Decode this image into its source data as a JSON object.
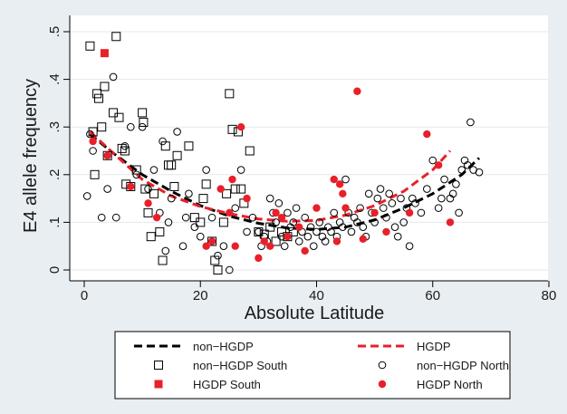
{
  "chart_data": {
    "type": "scatter",
    "xlabel": "Absolute Latitude",
    "ylabel": "E4 allele frequency",
    "xlim": [
      0,
      80
    ],
    "ylim": [
      0,
      0.5
    ],
    "x_ticks": [
      {
        "value": 0,
        "label": "0"
      },
      {
        "value": 20,
        "label": "20"
      },
      {
        "value": 40,
        "label": "40"
      },
      {
        "value": 60,
        "label": "60"
      },
      {
        "value": 80,
        "label": "80"
      }
    ],
    "y_ticks": [
      {
        "value": 0,
        "label": "0"
      },
      {
        "value": 0.1,
        "label": ".1"
      },
      {
        "value": 0.2,
        "label": ".2"
      },
      {
        "value": 0.3,
        "label": ".3"
      },
      {
        "value": 0.4,
        "label": ".4"
      },
      {
        "value": 0.5,
        "label": ".5"
      }
    ],
    "grid": "horizontal",
    "legend_position": "bottom",
    "colors": {
      "non_hgdp": "#000000",
      "hgdp": "#e8202a"
    },
    "series": [
      {
        "name": "non−HGDP",
        "kind": "line",
        "style": "dashed",
        "color": "#000000",
        "points": [
          [
            1,
            0.285
          ],
          [
            5,
            0.245
          ],
          [
            10,
            0.2
          ],
          [
            15,
            0.165
          ],
          [
            20,
            0.135
          ],
          [
            25,
            0.113
          ],
          [
            30,
            0.098
          ],
          [
            35,
            0.088
          ],
          [
            40,
            0.085
          ],
          [
            45,
            0.09
          ],
          [
            50,
            0.105
          ],
          [
            55,
            0.13
          ],
          [
            60,
            0.16
          ],
          [
            65,
            0.2
          ],
          [
            68,
            0.235
          ]
        ]
      },
      {
        "name": "HGDP",
        "kind": "line",
        "style": "dashed",
        "color": "#e8202a",
        "points": [
          [
            1,
            0.29
          ],
          [
            5,
            0.245
          ],
          [
            10,
            0.19
          ],
          [
            15,
            0.155
          ],
          [
            20,
            0.133
          ],
          [
            25,
            0.118
          ],
          [
            30,
            0.107
          ],
          [
            35,
            0.102
          ],
          [
            40,
            0.104
          ],
          [
            45,
            0.115
          ],
          [
            50,
            0.135
          ],
          [
            55,
            0.165
          ],
          [
            60,
            0.21
          ],
          [
            63,
            0.25
          ]
        ]
      },
      {
        "name": "non−HGDP South",
        "kind": "scatter",
        "marker": "square-open",
        "color": "#000000",
        "points": [
          [
            1,
            0.47
          ],
          [
            1.5,
            0.29
          ],
          [
            1.8,
            0.2
          ],
          [
            2.2,
            0.37
          ],
          [
            2.5,
            0.36
          ],
          [
            3,
            0.3
          ],
          [
            3.5,
            0.385
          ],
          [
            4,
            0.24
          ],
          [
            5,
            0.33
          ],
          [
            5.5,
            0.49
          ],
          [
            6,
            0.32
          ],
          [
            6.5,
            0.255
          ],
          [
            7,
            0.25
          ],
          [
            7.2,
            0.18
          ],
          [
            8,
            0.175
          ],
          [
            9,
            0.21
          ],
          [
            10,
            0.33
          ],
          [
            10.2,
            0.31
          ],
          [
            10.5,
            0.17
          ],
          [
            11,
            0.12
          ],
          [
            11.5,
            0.07
          ],
          [
            12,
            0.16
          ],
          [
            13,
            0.08
          ],
          [
            13.5,
            0.02
          ],
          [
            14,
            0.26
          ],
          [
            14.5,
            0.22
          ],
          [
            15,
            0.22
          ],
          [
            15.5,
            0.175
          ],
          [
            16,
            0.24
          ],
          [
            18,
            0.26
          ],
          [
            19,
            0.11
          ],
          [
            20,
            0.1
          ],
          [
            20.5,
            0.15
          ],
          [
            21,
            0.18
          ],
          [
            22,
            0.06
          ],
          [
            22.5,
            0.02
          ],
          [
            23,
            0.0
          ],
          [
            24,
            0.1
          ],
          [
            24.5,
            0.16
          ],
          [
            25,
            0.37
          ],
          [
            25.5,
            0.295
          ],
          [
            26,
            0.17
          ],
          [
            26.5,
            0.29
          ],
          [
            27,
            0.17
          ],
          [
            27.5,
            0.14
          ],
          [
            28.5,
            0.25
          ],
          [
            30,
            0.08
          ],
          [
            31,
            0.075
          ],
          [
            32,
            0.09
          ],
          [
            33,
            0.06
          ],
          [
            34,
            0.08
          ],
          [
            35,
            0.07
          ],
          [
            36,
            0.08
          ]
        ]
      },
      {
        "name": "non−HGDP North",
        "kind": "scatter",
        "marker": "circle-open",
        "color": "#000000",
        "points": [
          [
            0.5,
            0.155
          ],
          [
            1,
            0.285
          ],
          [
            1.5,
            0.25
          ],
          [
            3,
            0.11
          ],
          [
            4,
            0.17
          ],
          [
            5,
            0.405
          ],
          [
            5.5,
            0.11
          ],
          [
            7,
            0.26
          ],
          [
            8,
            0.3
          ],
          [
            9,
            0.2
          ],
          [
            10,
            0.3
          ],
          [
            11,
            0.17
          ],
          [
            12,
            0.21
          ],
          [
            13,
            0.12
          ],
          [
            13.5,
            0.27
          ],
          [
            14,
            0.04
          ],
          [
            14.5,
            0.1
          ],
          [
            15,
            0.15
          ],
          [
            16,
            0.29
          ],
          [
            17,
            0.05
          ],
          [
            17.5,
            0.11
          ],
          [
            18,
            0.16
          ],
          [
            19,
            0.09
          ],
          [
            20,
            0.07
          ],
          [
            21,
            0.21
          ],
          [
            22,
            0.11
          ],
          [
            23,
            0.03
          ],
          [
            24,
            0.05
          ],
          [
            25,
            0.0
          ],
          [
            26,
            0.13
          ],
          [
            27,
            0.21
          ],
          [
            28,
            0.08
          ],
          [
            29,
            0.11
          ],
          [
            30,
            0.08
          ],
          [
            30.5,
            0.05
          ],
          [
            31,
            0.07
          ],
          [
            31.5,
            0.06
          ],
          [
            32,
            0.15
          ],
          [
            32.5,
            0.12
          ],
          [
            33,
            0.1
          ],
          [
            33.5,
            0.14
          ],
          [
            34,
            0.07
          ],
          [
            34.5,
            0.05
          ],
          [
            35,
            0.12
          ],
          [
            35.5,
            0.09
          ],
          [
            36,
            0.1
          ],
          [
            36.5,
            0.13
          ],
          [
            37,
            0.06
          ],
          [
            37.5,
            0.08
          ],
          [
            38,
            0.11
          ],
          [
            38.5,
            0.07
          ],
          [
            39,
            0.09
          ],
          [
            39.5,
            0.05
          ],
          [
            40,
            0.08
          ],
          [
            40.5,
            0.1
          ],
          [
            41,
            0.07
          ],
          [
            41.5,
            0.06
          ],
          [
            42,
            0.09
          ],
          [
            42.5,
            0.08
          ],
          [
            43,
            0.12
          ],
          [
            43.5,
            0.07
          ],
          [
            44,
            0.1
          ],
          [
            44.5,
            0.09
          ],
          [
            45,
            0.19
          ],
          [
            45.5,
            0.12
          ],
          [
            46,
            0.08
          ],
          [
            46.5,
            0.11
          ],
          [
            47,
            0.1
          ],
          [
            47.5,
            0.13
          ],
          [
            48,
            0.09
          ],
          [
            48.5,
            0.07
          ],
          [
            49,
            0.16
          ],
          [
            49.5,
            0.12
          ],
          [
            50,
            0.1
          ],
          [
            50.5,
            0.15
          ],
          [
            51,
            0.17
          ],
          [
            51.5,
            0.13
          ],
          [
            52,
            0.11
          ],
          [
            52.5,
            0.16
          ],
          [
            53,
            0.14
          ],
          [
            53.5,
            0.09
          ],
          [
            54,
            0.07
          ],
          [
            54.5,
            0.15
          ],
          [
            55,
            0.1
          ],
          [
            55.5,
            0.13
          ],
          [
            56,
            0.05
          ],
          [
            56.5,
            0.15
          ],
          [
            57,
            0.14
          ],
          [
            58,
            0.12
          ],
          [
            59,
            0.17
          ],
          [
            60,
            0.23
          ],
          [
            61,
            0.13
          ],
          [
            61.5,
            0.15
          ],
          [
            62,
            0.19
          ],
          [
            63,
            0.15
          ],
          [
            63.5,
            0.16
          ],
          [
            64,
            0.18
          ],
          [
            64.5,
            0.12
          ],
          [
            65,
            0.21
          ],
          [
            65.5,
            0.23
          ],
          [
            66,
            0.22
          ],
          [
            66.5,
            0.31
          ],
          [
            67,
            0.21
          ],
          [
            68,
            0.205
          ]
        ]
      },
      {
        "name": "HGDP South",
        "kind": "scatter",
        "marker": "square-filled",
        "color": "#e8202a",
        "points": [
          [
            3.5,
            0.455
          ]
        ]
      },
      {
        "name": "HGDP North",
        "kind": "scatter",
        "marker": "circle-filled",
        "color": "#e8202a",
        "points": [
          [
            1.5,
            0.27
          ],
          [
            4,
            0.24
          ],
          [
            8,
            0.175
          ],
          [
            11,
            0.14
          ],
          [
            12.5,
            0.11
          ],
          [
            21,
            0.05
          ],
          [
            22,
            0.06
          ],
          [
            23.5,
            0.17
          ],
          [
            25,
            0.12
          ],
          [
            25.5,
            0.19
          ],
          [
            26,
            0.05
          ],
          [
            27,
            0.3
          ],
          [
            28,
            0.15
          ],
          [
            30,
            0.025
          ],
          [
            31,
            0.06
          ],
          [
            32,
            0.05
          ],
          [
            33,
            0.12
          ],
          [
            34,
            0.11
          ],
          [
            35,
            0.07
          ],
          [
            37,
            0.09
          ],
          [
            38,
            0.04
          ],
          [
            40,
            0.13
          ],
          [
            43,
            0.19
          ],
          [
            43.5,
            0.06
          ],
          [
            44,
            0.18
          ],
          [
            44.5,
            0.16
          ],
          [
            45,
            0.13
          ],
          [
            47,
            0.375
          ],
          [
            48,
            0.065
          ],
          [
            50,
            0.12
          ],
          [
            52,
            0.08
          ],
          [
            56,
            0.12
          ],
          [
            59,
            0.285
          ],
          [
            61,
            0.22
          ],
          [
            63,
            0.1
          ]
        ]
      }
    ]
  }
}
